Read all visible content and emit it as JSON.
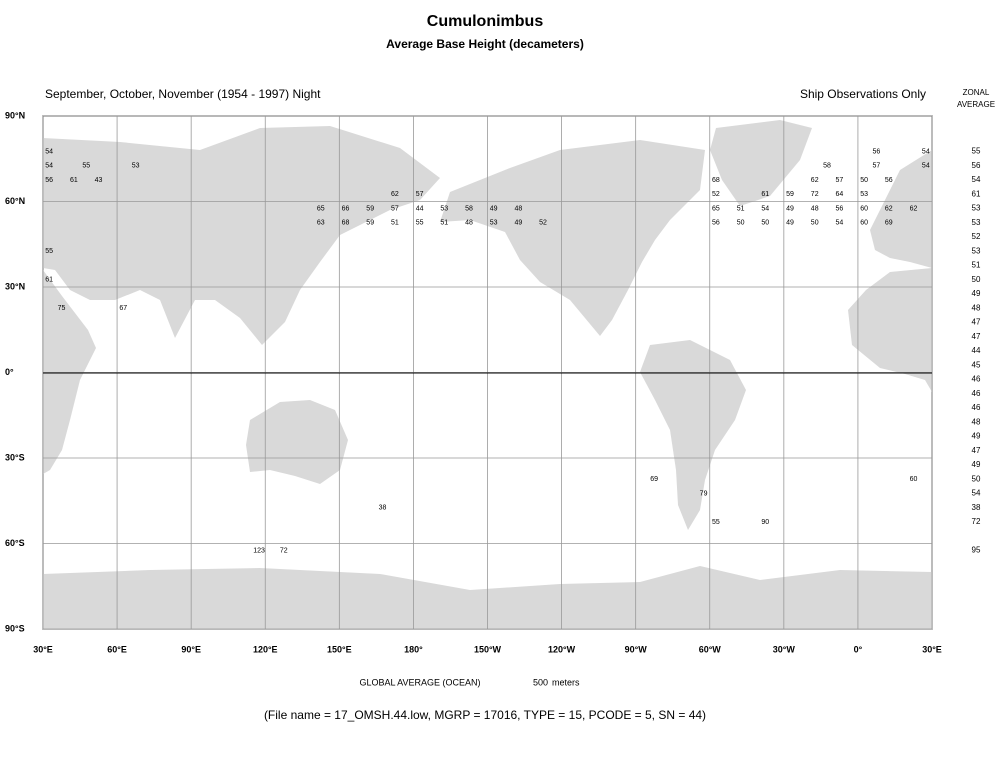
{
  "header": {
    "title": "Cumulonimbus",
    "subtitle": "Average Base Height (decameters)",
    "period": "September, October, November (1954 - 1997) Night",
    "source": "Ship Observations Only"
  },
  "map": {
    "type": "grid-map",
    "xlim": [
      30,
      390
    ],
    "ylim": [
      -90,
      90
    ],
    "xticks": [
      {
        "value": 30,
        "label": "30°E"
      },
      {
        "value": 60,
        "label": "60°E"
      },
      {
        "value": 90,
        "label": "90°E"
      },
      {
        "value": 120,
        "label": "120°E"
      },
      {
        "value": 150,
        "label": "150°E"
      },
      {
        "value": 180,
        "label": "180°"
      },
      {
        "value": 210,
        "label": "150°W"
      },
      {
        "value": 240,
        "label": "120°W"
      },
      {
        "value": 270,
        "label": "90°W"
      },
      {
        "value": 300,
        "label": "60°W"
      },
      {
        "value": 330,
        "label": "30°W"
      },
      {
        "value": 360,
        "label": "0°"
      },
      {
        "value": 390,
        "label": "30°E"
      }
    ],
    "yticks": [
      {
        "value": 90,
        "label": "90°N"
      },
      {
        "value": 60,
        "label": "60°N"
      },
      {
        "value": 30,
        "label": "30°N"
      },
      {
        "value": 0,
        "label": "0°"
      },
      {
        "value": -30,
        "label": "30°S"
      },
      {
        "value": -60,
        "label": "60°S"
      },
      {
        "value": -90,
        "label": "90°S"
      }
    ],
    "grid": true,
    "zonal_header": [
      "ZONAL",
      "AVERAGE"
    ],
    "zonal": [
      {
        "lat": 77.5,
        "value": 55
      },
      {
        "lat": 72.5,
        "value": 56
      },
      {
        "lat": 67.5,
        "value": 54
      },
      {
        "lat": 62.5,
        "value": 61
      },
      {
        "lat": 57.5,
        "value": 53
      },
      {
        "lat": 52.5,
        "value": 53
      },
      {
        "lat": 47.5,
        "value": 52
      },
      {
        "lat": 42.5,
        "value": 53
      },
      {
        "lat": 37.5,
        "value": 51
      },
      {
        "lat": 32.5,
        "value": 50
      },
      {
        "lat": 27.5,
        "value": 49
      },
      {
        "lat": 22.5,
        "value": 48
      },
      {
        "lat": 17.5,
        "value": 47
      },
      {
        "lat": 12.5,
        "value": 47
      },
      {
        "lat": 7.5,
        "value": 44
      },
      {
        "lat": 2.5,
        "value": 45
      },
      {
        "lat": -2.5,
        "value": 46
      },
      {
        "lat": -7.5,
        "value": 46
      },
      {
        "lat": -12.5,
        "value": 46
      },
      {
        "lat": -17.5,
        "value": 48
      },
      {
        "lat": -22.5,
        "value": 49
      },
      {
        "lat": -27.5,
        "value": 47
      },
      {
        "lat": -32.5,
        "value": 49
      },
      {
        "lat": -37.5,
        "value": 50
      },
      {
        "lat": -42.5,
        "value": 54
      },
      {
        "lat": -47.5,
        "value": 38
      },
      {
        "lat": -52.5,
        "value": 72
      },
      {
        "lat": -62.5,
        "value": 95
      }
    ],
    "cells": [
      {
        "lat": 77.5,
        "values": [
          {
            "lon": 32.5,
            "value": 54
          },
          {
            "lon": 367.5,
            "value": 56
          },
          {
            "lon": 387.5,
            "value": 54
          }
        ]
      },
      {
        "lat": 72.5,
        "values": [
          {
            "lon": 32.5,
            "value": 54
          },
          {
            "lon": 47.5,
            "value": 55
          },
          {
            "lon": 67.5,
            "value": 53
          },
          {
            "lon": 347.5,
            "value": 58
          },
          {
            "lon": 367.5,
            "value": 57
          },
          {
            "lon": 387.5,
            "value": 54
          }
        ]
      },
      {
        "lat": 67.5,
        "values": [
          {
            "lon": 32.5,
            "value": 56
          },
          {
            "lon": 42.5,
            "value": 61
          },
          {
            "lon": 52.5,
            "value": 43
          },
          {
            "lon": 302.5,
            "value": 68
          },
          {
            "lon": 342.5,
            "value": 62
          },
          {
            "lon": 352.5,
            "value": 57
          },
          {
            "lon": 362.5,
            "value": 50
          },
          {
            "lon": 372.5,
            "value": 56
          }
        ]
      },
      {
        "lat": 62.5,
        "values": [
          {
            "lon": 172.5,
            "value": 62
          },
          {
            "lon": 182.5,
            "value": 57
          },
          {
            "lon": 302.5,
            "value": 52
          },
          {
            "lon": 322.5,
            "value": 61
          },
          {
            "lon": 332.5,
            "value": 59
          },
          {
            "lon": 342.5,
            "value": 72
          },
          {
            "lon": 352.5,
            "value": 64
          },
          {
            "lon": 362.5,
            "value": 53
          }
        ]
      },
      {
        "lat": 57.5,
        "values": [
          {
            "lon": 142.5,
            "value": 65
          },
          {
            "lon": 152.5,
            "value": 66
          },
          {
            "lon": 162.5,
            "value": 59
          },
          {
            "lon": 172.5,
            "value": 57
          },
          {
            "lon": 182.5,
            "value": 44
          },
          {
            "lon": 192.5,
            "value": 53
          },
          {
            "lon": 202.5,
            "value": 58
          },
          {
            "lon": 212.5,
            "value": 49
          },
          {
            "lon": 222.5,
            "value": 48
          },
          {
            "lon": 302.5,
            "value": 65
          },
          {
            "lon": 312.5,
            "value": 51
          },
          {
            "lon": 322.5,
            "value": 54
          },
          {
            "lon": 332.5,
            "value": 49
          },
          {
            "lon": 342.5,
            "value": 48
          },
          {
            "lon": 352.5,
            "value": 56
          },
          {
            "lon": 362.5,
            "value": 60
          },
          {
            "lon": 372.5,
            "value": 62
          },
          {
            "lon": 382.5,
            "value": 62
          }
        ]
      },
      {
        "lat": 52.5,
        "values": [
          {
            "lon": 142.5,
            "value": 63
          },
          {
            "lon": 152.5,
            "value": 68
          },
          {
            "lon": 162.5,
            "value": 59
          },
          {
            "lon": 172.5,
            "value": 51
          },
          {
            "lon": 182.5,
            "value": 55
          },
          {
            "lon": 192.5,
            "value": 51
          },
          {
            "lon": 202.5,
            "value": 48
          },
          {
            "lon": 212.5,
            "value": 53
          },
          {
            "lon": 222.5,
            "value": 49
          },
          {
            "lon": 232.5,
            "value": 52
          },
          {
            "lon": 302.5,
            "value": 56
          },
          {
            "lon": 312.5,
            "value": 50
          },
          {
            "lon": 322.5,
            "value": 50
          },
          {
            "lon": 332.5,
            "value": 49
          },
          {
            "lon": 342.5,
            "value": 50
          },
          {
            "lon": 352.5,
            "value": 54
          },
          {
            "lon": 362.5,
            "value": 60
          },
          {
            "lon": 372.5,
            "value": 69
          }
        ]
      },
      {
        "lat": 42.5,
        "values": [
          {
            "lon": 32.5,
            "value": 55
          }
        ]
      },
      {
        "lat": 32.5,
        "values": [
          {
            "lon": 32.5,
            "value": 61
          }
        ]
      },
      {
        "lat": 22.5,
        "values": [
          {
            "lon": 37.5,
            "value": 75
          },
          {
            "lon": 62.5,
            "value": 67
          }
        ]
      },
      {
        "lat": -37.5,
        "values": [
          {
            "lon": 277.5,
            "value": 69
          },
          {
            "lon": 382.5,
            "value": 60
          }
        ]
      },
      {
        "lat": -42.5,
        "values": [
          {
            "lon": 297.5,
            "value": 79
          }
        ]
      },
      {
        "lat": -47.5,
        "values": [
          {
            "lon": 167.5,
            "value": 38
          }
        ]
      },
      {
        "lat": -52.5,
        "values": [
          {
            "lon": 302.5,
            "value": 55
          },
          {
            "lon": 322.5,
            "value": 90
          }
        ]
      },
      {
        "lat": -62.5,
        "values": [
          {
            "lon": 117.5,
            "value": 123
          },
          {
            "lon": 127.5,
            "value": 72
          }
        ]
      }
    ]
  },
  "footer": {
    "global_average": {
      "label": "GLOBAL AVERAGE (OCEAN)",
      "value": 500,
      "unit": "meters"
    },
    "file_info": "(File name = 17_OMSH.44.low, MGRP = 17016, TYPE = 15, PCODE = 5, SN = 44)"
  }
}
